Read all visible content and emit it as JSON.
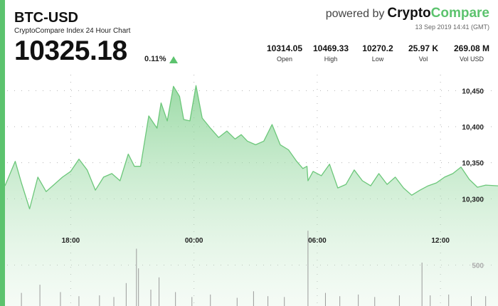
{
  "header": {
    "symbol": "BTC-USD",
    "subtitle": "CryptoCompare Index 24 Hour Chart",
    "price": "10325.18",
    "change": "0.11%",
    "powered_by": "powered by",
    "brand_part1": "Crypto",
    "brand_part2": "Compare",
    "timestamp": "13 Sep 2019 14:41 (GMT)"
  },
  "stats": [
    {
      "value": "10314.05",
      "label": "Open"
    },
    {
      "value": "10469.33",
      "label": "High"
    },
    {
      "value": "10270.2",
      "label": "Low"
    },
    {
      "value": "25.97 K",
      "label": "Vol"
    },
    {
      "value": "269.08 M",
      "label": "Vol USD"
    }
  ],
  "colors": {
    "accent": "#5cc36e",
    "line": "#6cc77a",
    "volume": "#9a9a9a"
  },
  "chart_data": {
    "type": "area",
    "x_tick_labels": [
      "18:00",
      "00:00",
      "06:00",
      "12:00"
    ],
    "x_tick_hours": [
      3.2,
      9.2,
      15.2,
      21.2
    ],
    "y_tick_labels": [
      "10,450",
      "10,400",
      "10,350",
      "10,300"
    ],
    "y_tick_values": [
      10450,
      10400,
      10350,
      10300
    ],
    "ylim": [
      10247,
      10482
    ],
    "xlim_hours": [
      0,
      24
    ],
    "volume_tick_label": "500",
    "volume_tick_value": 500,
    "volume_ylim": [
      0,
      1000
    ],
    "series": [
      {
        "x_hours": [
          0,
          0.5,
          0.8,
          1.2,
          1.6,
          2.0,
          2.4,
          2.8,
          3.2,
          3.6,
          4.0,
          4.4,
          4.8,
          5.2,
          5.6,
          6.0,
          6.3,
          6.6,
          7.0,
          7.4,
          7.6,
          7.9,
          8.2,
          8.5,
          8.7,
          9.0,
          9.3,
          9.6,
          10.0,
          10.4,
          10.8,
          11.2,
          11.5,
          11.8,
          12.2,
          12.6,
          13.0,
          13.4,
          13.8,
          14.2,
          14.5,
          14.7,
          14.75,
          15.0,
          15.4,
          15.8,
          16.2,
          16.6,
          17.0,
          17.4,
          17.8,
          18.2,
          18.6,
          19.0,
          19.4,
          19.8,
          20.2,
          20.6,
          21.0,
          21.4,
          21.8,
          22.2,
          22.6,
          23.0,
          23.4,
          24.0
        ],
        "values": [
          10318,
          10352,
          10322,
          10286,
          10330,
          10310,
          10320,
          10330,
          10338,
          10355,
          10340,
          10312,
          10330,
          10335,
          10325,
          10362,
          10345,
          10345,
          10415,
          10398,
          10433,
          10408,
          10456,
          10442,
          10410,
          10408,
          10457,
          10412,
          10398,
          10385,
          10394,
          10383,
          10389,
          10380,
          10375,
          10380,
          10403,
          10375,
          10368,
          10352,
          10342,
          10345,
          10325,
          10338,
          10332,
          10348,
          10315,
          10320,
          10340,
          10325,
          10318,
          10335,
          10320,
          10330,
          10315,
          10305,
          10312,
          10318,
          10322,
          10330,
          10335,
          10344,
          10327,
          10316,
          10319,
          10318
        ]
      }
    ],
    "volume": [
      {
        "x_hours": 0.8,
        "value": 160
      },
      {
        "x_hours": 1.7,
        "value": 260
      },
      {
        "x_hours": 2.7,
        "value": 170
      },
      {
        "x_hours": 3.6,
        "value": 120
      },
      {
        "x_hours": 4.6,
        "value": 130
      },
      {
        "x_hours": 5.3,
        "value": 110
      },
      {
        "x_hours": 5.9,
        "value": 280
      },
      {
        "x_hours": 6.4,
        "value": 700
      },
      {
        "x_hours": 6.5,
        "value": 460
      },
      {
        "x_hours": 7.1,
        "value": 200
      },
      {
        "x_hours": 7.5,
        "value": 350
      },
      {
        "x_hours": 8.3,
        "value": 170
      },
      {
        "x_hours": 9.1,
        "value": 110
      },
      {
        "x_hours": 10.0,
        "value": 140
      },
      {
        "x_hours": 11.3,
        "value": 100
      },
      {
        "x_hours": 12.1,
        "value": 180
      },
      {
        "x_hours": 12.8,
        "value": 120
      },
      {
        "x_hours": 13.6,
        "value": 110
      },
      {
        "x_hours": 14.75,
        "value": 920
      },
      {
        "x_hours": 15.6,
        "value": 160
      },
      {
        "x_hours": 16.3,
        "value": 120
      },
      {
        "x_hours": 17.2,
        "value": 140
      },
      {
        "x_hours": 18.0,
        "value": 110
      },
      {
        "x_hours": 19.2,
        "value": 130
      },
      {
        "x_hours": 20.3,
        "value": 530
      },
      {
        "x_hours": 20.7,
        "value": 130
      },
      {
        "x_hours": 21.6,
        "value": 140
      },
      {
        "x_hours": 22.7,
        "value": 120
      },
      {
        "x_hours": 23.4,
        "value": 120
      }
    ]
  }
}
